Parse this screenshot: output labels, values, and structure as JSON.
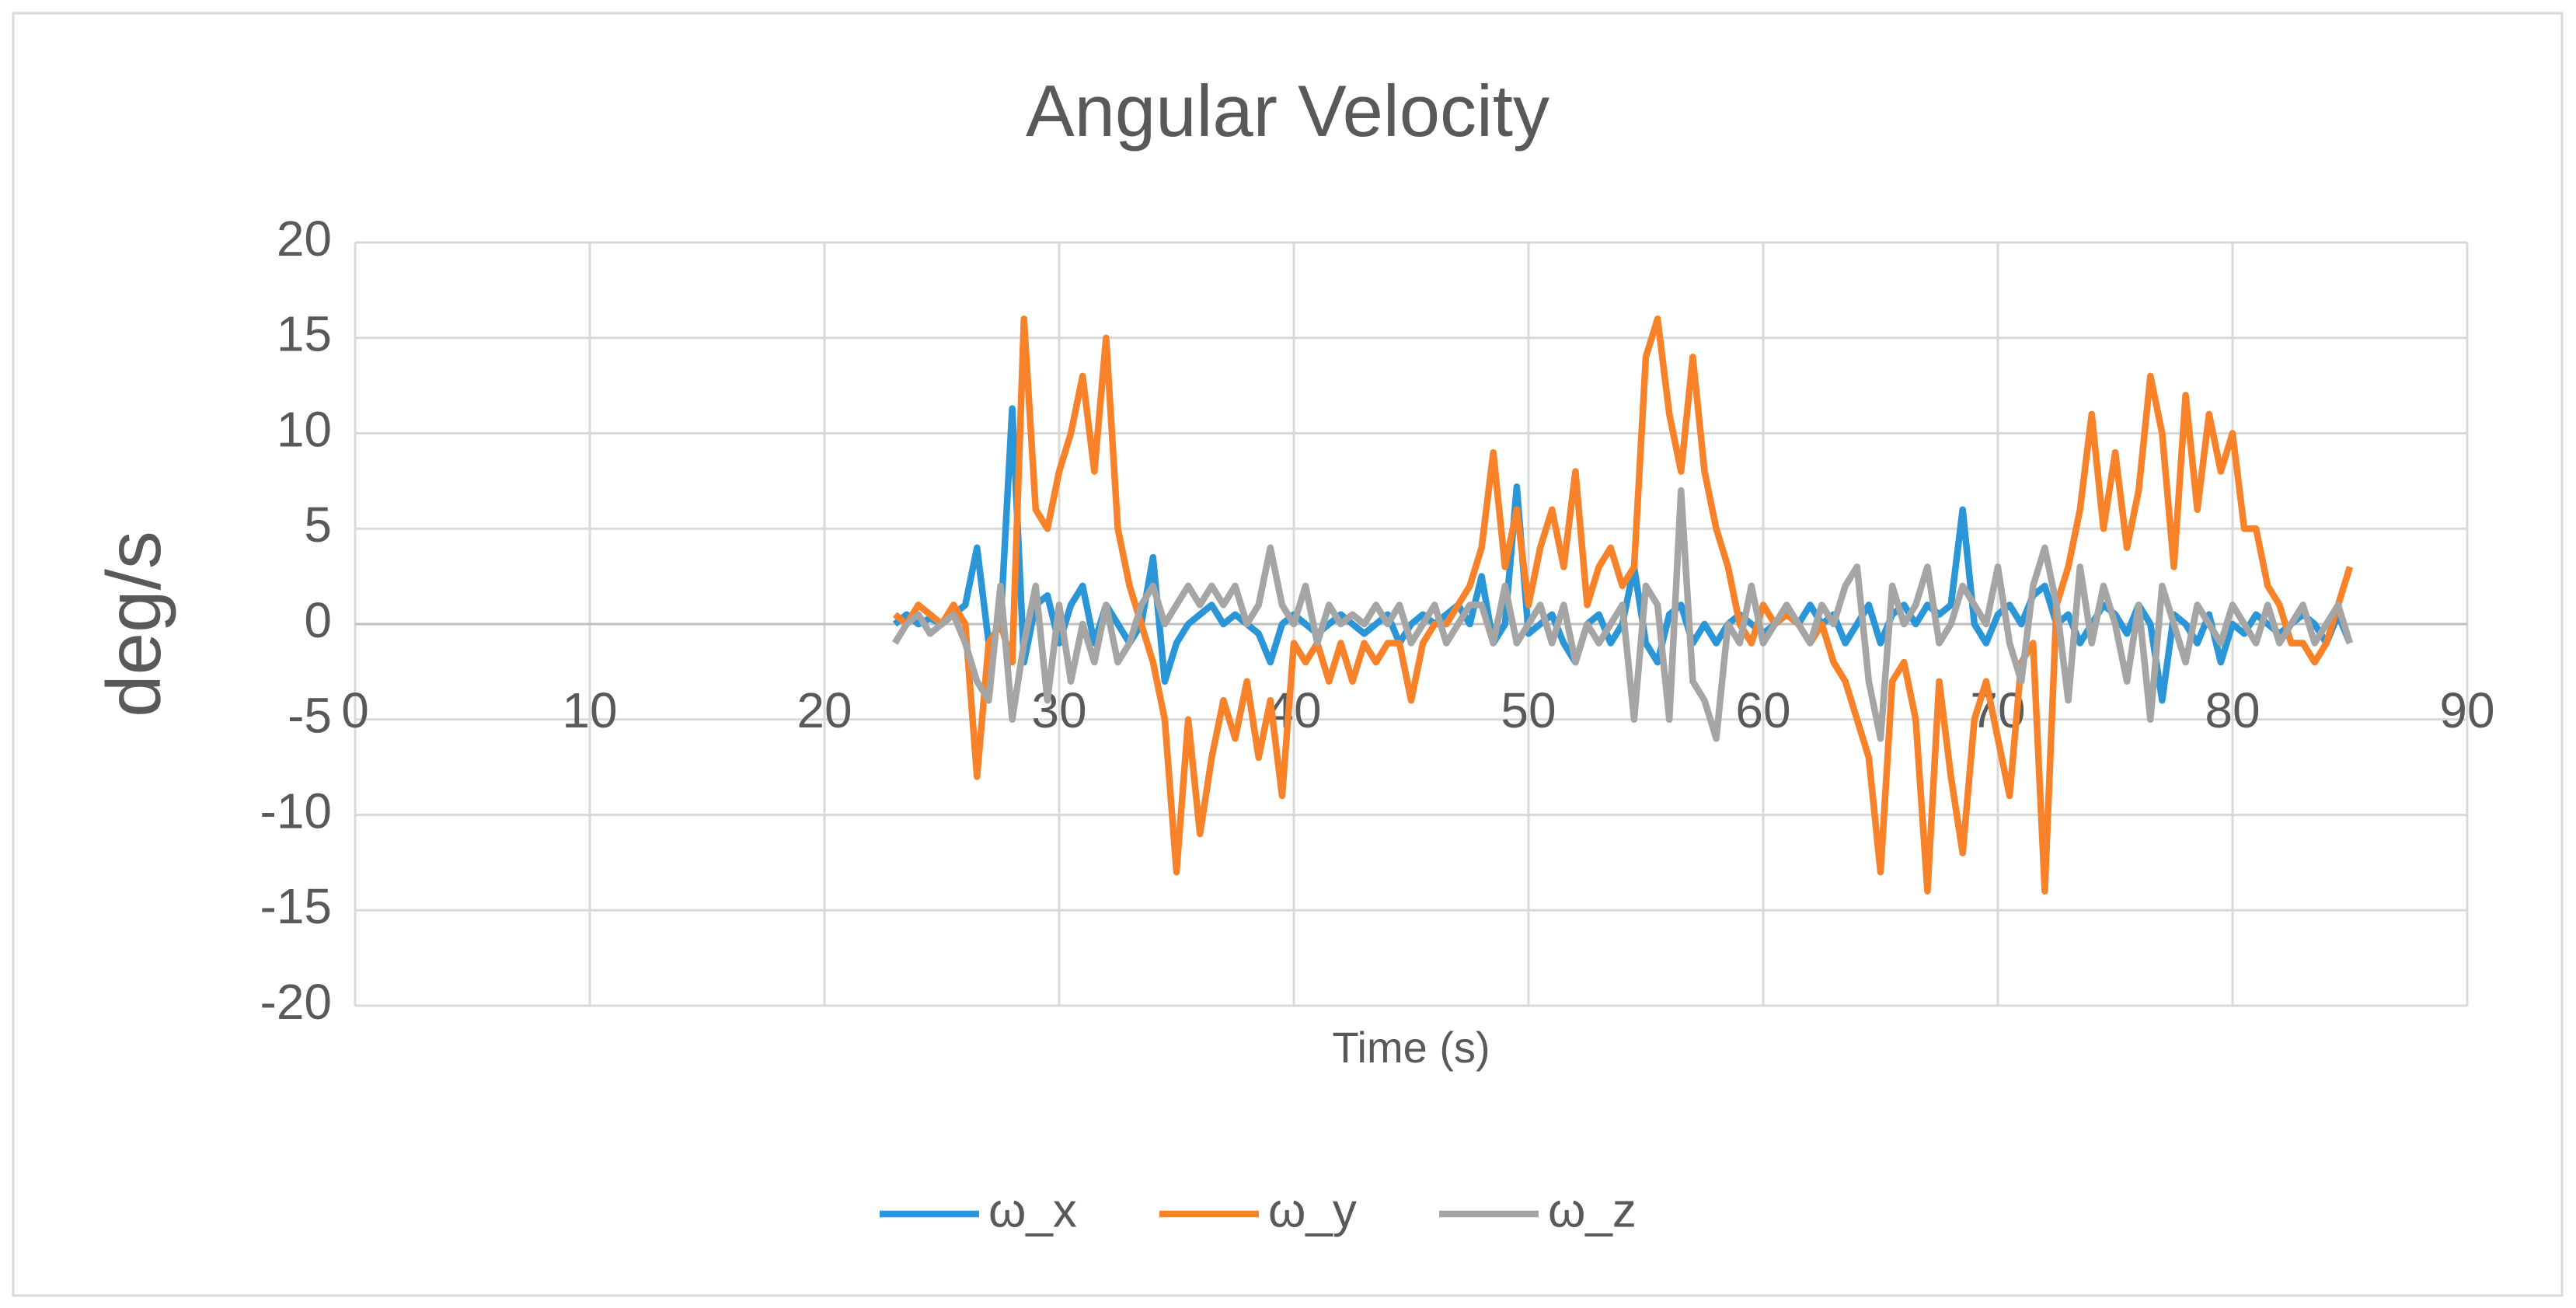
{
  "chart_data": {
    "type": "line",
    "title": "Angular Velocity",
    "xlabel": "Time (s)",
    "ylabel": "deg/s",
    "xlim": [
      0,
      90
    ],
    "xticks": [
      0,
      10,
      20,
      30,
      40,
      50,
      60,
      70,
      80,
      90
    ],
    "ylim": [
      -20,
      20
    ],
    "yticks": [
      -20,
      -15,
      -10,
      -5,
      0,
      5,
      10,
      15,
      20
    ],
    "grid": true,
    "legend": "bottom",
    "x": [
      23,
      23.5,
      24,
      24.5,
      25,
      25.5,
      26,
      26.5,
      27,
      27.5,
      28,
      28.5,
      29,
      29.5,
      30,
      30.5,
      31,
      31.5,
      32,
      32.5,
      33,
      33.5,
      34,
      34.5,
      35,
      35.5,
      36,
      36.5,
      37,
      37.5,
      38,
      38.5,
      39,
      39.5,
      40,
      40.5,
      41,
      41.5,
      42,
      42.5,
      43,
      43.5,
      44,
      44.5,
      45,
      45.5,
      46,
      46.5,
      47,
      47.5,
      48,
      48.5,
      49,
      49.5,
      50,
      50.5,
      51,
      51.5,
      52,
      52.5,
      53,
      53.5,
      54,
      54.5,
      55,
      55.5,
      56,
      56.5,
      57,
      57.5,
      58,
      58.5,
      59,
      59.5,
      60,
      60.5,
      61,
      61.5,
      62,
      62.5,
      63,
      63.5,
      64,
      64.5,
      65,
      65.5,
      66,
      66.5,
      67,
      67.5,
      68,
      68.5,
      69,
      69.5,
      70,
      70.5,
      71,
      71.5,
      72,
      72.5,
      73,
      73.5,
      74,
      74.5,
      75,
      75.5,
      76,
      76.5,
      77,
      77.5,
      78,
      78.5,
      79,
      79.5,
      80,
      80.5,
      81,
      81.5,
      82,
      82.5,
      83,
      83.5,
      84,
      84.5,
      85
    ],
    "series": [
      {
        "name": "ω_x",
        "color": "#2a96d8",
        "values": [
          0,
          0.5,
          0,
          0.3,
          0,
          0.5,
          1,
          4,
          -1,
          0,
          11.3,
          -2,
          1,
          1.5,
          -1,
          1,
          2,
          -1,
          1,
          0,
          -1,
          0,
          3.5,
          -3,
          -1,
          0,
          0.5,
          1,
          0,
          0.5,
          0,
          -0.5,
          -2,
          0,
          0.5,
          0,
          -0.5,
          0,
          0.5,
          0,
          -0.5,
          0,
          0.5,
          -1,
          0,
          0.5,
          0,
          0.5,
          1,
          0,
          2.5,
          -1,
          0,
          7.2,
          -0.5,
          0,
          0.5,
          -1,
          -2,
          0,
          0.5,
          -1,
          0,
          3,
          -1,
          -2,
          0.5,
          1,
          -1,
          0,
          -1,
          0,
          0.5,
          0,
          -0.5,
          0,
          0.5,
          0,
          1,
          0,
          0.5,
          -1,
          0,
          1,
          -1,
          0.5,
          1,
          0,
          1,
          0.5,
          1,
          6,
          0,
          -1,
          0.5,
          1,
          0,
          1.5,
          2,
          0,
          0.5,
          -1,
          0,
          1,
          0.5,
          -0.5,
          1,
          0,
          -4,
          0.5,
          0,
          -1,
          0.5,
          -2,
          0,
          -0.5,
          0.5,
          0,
          -0.5,
          0,
          0.5,
          0,
          -1,
          0.5,
          -1
        ]
      },
      {
        "name": "ω_y",
        "color": "#f7822a",
        "values": [
          0.5,
          0,
          1,
          0.5,
          0,
          1,
          0,
          -8,
          -1,
          0,
          -2,
          16,
          6,
          5,
          8,
          10,
          13,
          8,
          15,
          5,
          2,
          0,
          -2,
          -5,
          -13,
          -5,
          -11,
          -7,
          -4,
          -6,
          -3,
          -7,
          -4,
          -9,
          -1,
          -2,
          -1,
          -3,
          -1,
          -3,
          -1,
          -2,
          -1,
          -1,
          -4,
          -1,
          0,
          0,
          1,
          2,
          4,
          9,
          3,
          6,
          1,
          4,
          6,
          3,
          8,
          1,
          3,
          4,
          2,
          3,
          14,
          16,
          11,
          8,
          14,
          8,
          5,
          3,
          0,
          -1,
          1,
          0,
          0.5,
          0,
          -1,
          0,
          -2,
          -3,
          -5,
          -7,
          -13,
          -3,
          -2,
          -5,
          -14,
          -3,
          -8,
          -12,
          -5,
          -3,
          -6,
          -9,
          -2,
          -1,
          -14,
          1,
          3,
          6,
          11,
          5,
          9,
          4,
          7,
          13,
          10,
          3,
          12,
          6,
          11,
          8,
          10,
          5,
          5,
          2,
          1,
          -1,
          -1,
          -2,
          -1,
          1,
          3
        ]
      },
      {
        "name": "ω_z",
        "color": "#a5a5a5",
        "values": [
          -1,
          0,
          0.5,
          -0.5,
          0,
          0.5,
          -1,
          -3,
          -4,
          2,
          -5,
          -1,
          2,
          -4,
          1,
          -3,
          0,
          -2,
          1,
          -2,
          -1,
          1,
          2,
          0,
          1,
          2,
          1,
          2,
          1,
          2,
          0,
          1,
          4,
          1,
          0,
          2,
          -1,
          1,
          0,
          0.5,
          0,
          1,
          0,
          1,
          -1,
          0,
          1,
          -1,
          0,
          1,
          1,
          -1,
          2,
          -1,
          0,
          1,
          -1,
          1,
          -2,
          0,
          -1,
          0,
          1,
          -5,
          2,
          1,
          -5,
          7,
          -3,
          -4,
          -6,
          0,
          -1,
          2,
          -1,
          0,
          1,
          0,
          -1,
          1,
          0,
          2,
          3,
          -3,
          -6,
          2,
          0,
          1,
          3,
          -1,
          0,
          2,
          1,
          0,
          3,
          -1,
          -3,
          2,
          4,
          1,
          -4,
          3,
          -1,
          2,
          0,
          -3,
          1,
          -5,
          2,
          0,
          -2,
          1,
          0,
          -1,
          1,
          0,
          -1,
          1,
          -1,
          0,
          1,
          -1,
          0,
          1,
          -1
        ]
      }
    ]
  }
}
